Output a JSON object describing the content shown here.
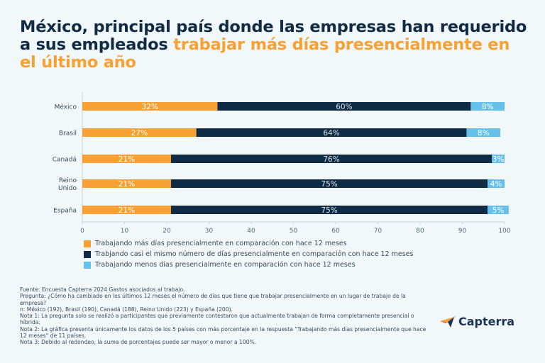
{
  "title": {
    "part1": "México, principal país donde las empresas han requerido a sus empleados ",
    "highlight": "trabajar más días presencialmente en el último año"
  },
  "colors": {
    "more": "#f7a033",
    "same": "#0f2b45",
    "less": "#66c1ea",
    "title": "#0f2b45",
    "highlight": "#f7a033"
  },
  "chart_data": {
    "type": "bar",
    "orientation": "horizontal",
    "stacked": true,
    "categories": [
      "México",
      "Brasil",
      "Canadá",
      "Reino Unido",
      "España"
    ],
    "category_lines": [
      [
        "México"
      ],
      [
        "Brasil"
      ],
      [
        "Canadá"
      ],
      [
        "Reino",
        "Unido"
      ],
      [
        "España"
      ]
    ],
    "series": [
      {
        "name": "Trabajando más días presencialmente en comparación con hace 12 meses",
        "key": "more",
        "values": [
          32,
          27,
          21,
          21,
          21
        ],
        "labels": [
          "32%",
          "27%",
          "21%",
          "21%",
          "21%"
        ]
      },
      {
        "name": "Trabjando casi el mismo número de días presencialmente en comparación con hace 12 meses",
        "key": "same",
        "values": [
          60,
          64,
          76,
          75,
          75
        ],
        "labels": [
          "60%",
          "64%",
          "76%",
          "75%",
          "75%"
        ]
      },
      {
        "name": "Trabajando menos días presencialmente en comparación con hace 12 meses",
        "key": "less",
        "values": [
          8,
          8,
          3,
          4,
          5
        ],
        "labels": [
          "8%",
          "8%",
          "3%",
          "4%",
          "5%"
        ]
      }
    ],
    "xlim": [
      0,
      100
    ],
    "xticks": [
      0,
      10,
      20,
      30,
      40,
      50,
      60,
      70,
      80,
      90,
      100
    ],
    "xlabel": "",
    "ylabel": "",
    "grid": false,
    "legend_position": "bottom"
  },
  "notes": [
    "Fuente: Encuesta Capterra 2024 Gastos asociados al trabajo.",
    "Pregunta: ¿Cómo ha cambiado en los últimos 12 meses el número de días que tiene que trabajar presencialmente en un lugar de trabajo de la empresa?",
    "n: México (192), Brasil (190), Canadá (188), Reino Unido (223) y España (200).",
    "Nota 1: La pregunta solo se realizó a participantes que previamente contestaron que actualmente trabajan de forma completamente presencial o híbrida.",
    "Nota 2: La gráfica presenta únicamente los datos de los 5 países con más porcentaje en la respuesta \"Trabajando más días presencialmente que hace 12 meses\" de 11 países.",
    "Nota 3: Debido al redondeo, la suma de porcentajes puede ser mayor o menor a 100%."
  ],
  "logo": {
    "name": "capterra-logo",
    "text": "Capterra"
  }
}
